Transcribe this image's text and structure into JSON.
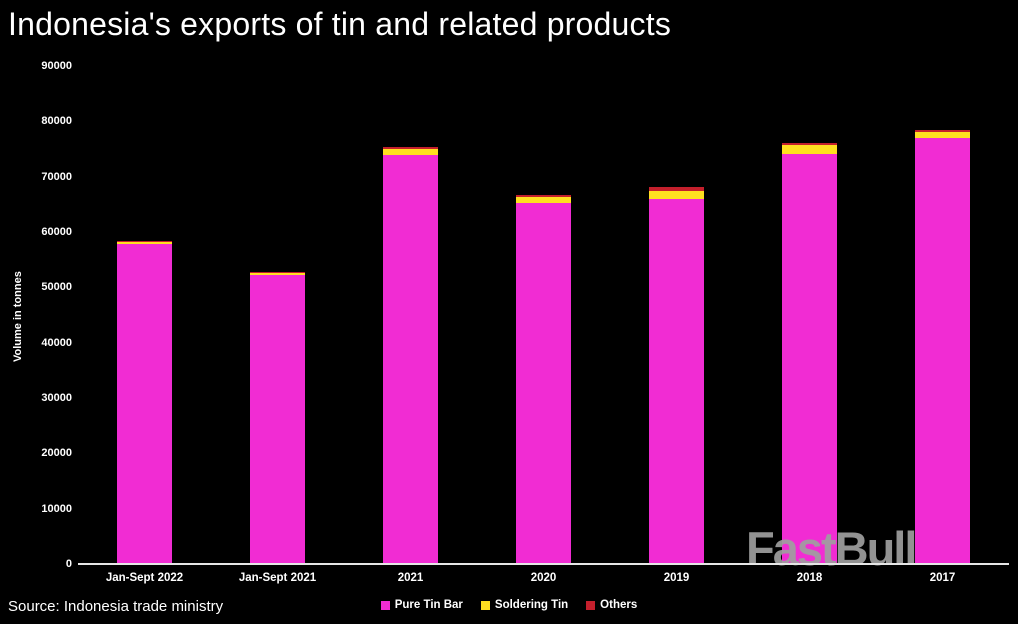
{
  "title": "Indonesia's exports of tin and related products",
  "source": "Source: Indonesia trade ministry",
  "watermark": "FastBull",
  "colors": {
    "background": "#000000",
    "axis_line": "#e6e6e6",
    "text": "#ffffff",
    "watermark": "#9e9e9e"
  },
  "chart_data": {
    "type": "bar",
    "stacked": true,
    "title": "Indonesia's exports of tin and related products",
    "xlabel": "",
    "ylabel": "Volume in tonnes",
    "ylim": [
      0,
      90000
    ],
    "ytick_step": 10000,
    "grid": false,
    "legend_position": "bottom",
    "categories": [
      "Jan-Sept 2022",
      "Jan-Sept 2021",
      "2021",
      "2020",
      "2019",
      "2018",
      "2017"
    ],
    "series": [
      {
        "name": "Pure Tin Bar",
        "color": "#f12cd3",
        "values": [
          57900,
          52200,
          73900,
          65200,
          65900,
          74100,
          77000
        ]
      },
      {
        "name": "Soldering Tin",
        "color": "#ffdf20",
        "values": [
          400,
          500,
          1100,
          1100,
          1600,
          1700,
          1100
        ]
      },
      {
        "name": "Others",
        "color": "#c41f2c",
        "values": [
          100,
          100,
          400,
          300,
          700,
          300,
          400
        ]
      }
    ]
  }
}
